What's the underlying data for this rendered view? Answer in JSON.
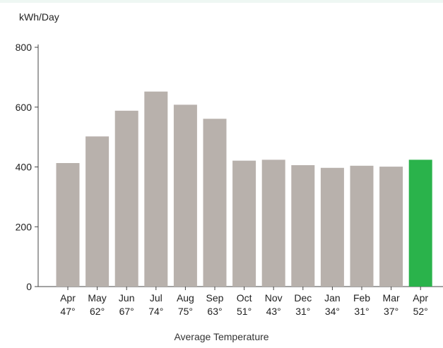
{
  "chart_data": {
    "type": "bar",
    "ylabel": "kWh/Day",
    "xlabel": "Average Temperature",
    "ylim": [
      0,
      800
    ],
    "yticks": [
      0,
      200,
      400,
      600,
      800
    ],
    "categories": [
      "Apr",
      "May",
      "Jun",
      "Jul",
      "Aug",
      "Sep",
      "Oct",
      "Nov",
      "Dec",
      "Jan",
      "Feb",
      "Mar",
      "Apr"
    ],
    "temperatures": [
      "47°",
      "62°",
      "67°",
      "74°",
      "75°",
      "63°",
      "51°",
      "43°",
      "31°",
      "34°",
      "31°",
      "37°",
      "52°"
    ],
    "values": [
      413,
      502,
      588,
      652,
      608,
      561,
      421,
      424,
      406,
      397,
      404,
      401,
      424
    ],
    "highlight_index": 12,
    "colors": {
      "bar": "#b8b1ac",
      "highlight": "#2ab34b",
      "axis": "#444444"
    },
    "grid": false,
    "legend": "none"
  }
}
